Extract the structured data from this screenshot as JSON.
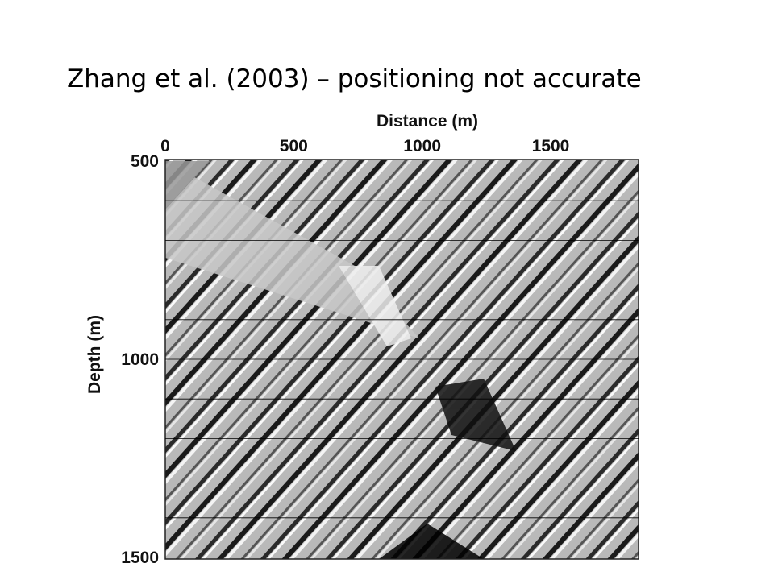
{
  "title": "Zhang et al. (2003) – positioning not accurate",
  "figure": {
    "x_label": "Distance (m)",
    "y_label": "Depth (m)",
    "x_ticks": [
      "0",
      "500",
      "1000",
      "1500"
    ],
    "y_ticks": [
      "500",
      "1000",
      "1500"
    ]
  }
}
